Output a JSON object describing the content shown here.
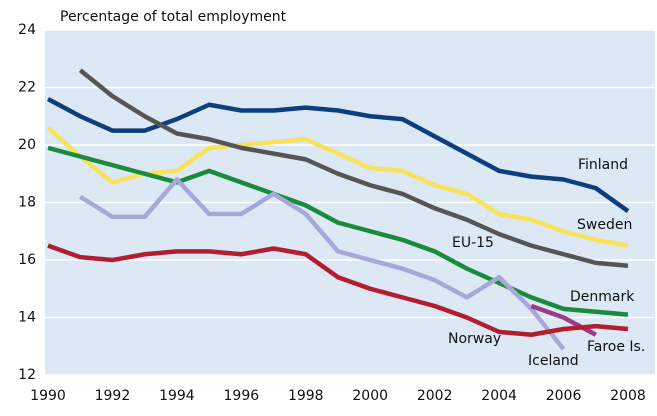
{
  "chart_data": {
    "type": "line",
    "title": "Percentage of total employment",
    "x": [
      1990,
      1991,
      1992,
      1993,
      1994,
      1995,
      1996,
      1997,
      1998,
      1999,
      2000,
      2001,
      2002,
      2003,
      2004,
      2005,
      2006,
      2007,
      2008
    ],
    "xlim": [
      1990,
      2008
    ],
    "xticks": [
      1990,
      1992,
      1994,
      1996,
      1998,
      2000,
      2002,
      2004,
      2006,
      2008
    ],
    "ylim": [
      12,
      24
    ],
    "yticks": [
      12,
      14,
      16,
      18,
      20,
      22,
      24
    ],
    "grid": true,
    "series": [
      {
        "name": "Finland",
        "color": "#0d3f7f",
        "values": [
          21.6,
          21.0,
          20.5,
          20.5,
          20.9,
          21.4,
          21.2,
          21.2,
          21.3,
          21.2,
          21.0,
          20.9,
          20.3,
          19.7,
          19.1,
          18.9,
          18.8,
          18.5,
          17.7
        ]
      },
      {
        "name": "Sweden",
        "color": "#f7e35a",
        "values": [
          20.6,
          19.6,
          18.7,
          19.0,
          19.1,
          19.9,
          20.0,
          20.1,
          20.2,
          19.7,
          19.2,
          19.1,
          18.6,
          18.3,
          17.6,
          17.4,
          17.0,
          16.7,
          16.5
        ]
      },
      {
        "name": "Denmark",
        "color": "#555555",
        "values": [
          null,
          22.6,
          21.7,
          21.0,
          20.4,
          20.2,
          19.9,
          19.7,
          19.5,
          19.0,
          18.6,
          18.3,
          17.8,
          17.4,
          16.9,
          16.5,
          16.2,
          15.9,
          15.8
        ]
      },
      {
        "name": "EU-15",
        "color": "#1a8a3c",
        "values": [
          19.9,
          19.6,
          19.3,
          19.0,
          18.7,
          19.1,
          18.7,
          18.3,
          17.9,
          17.3,
          17.0,
          16.7,
          16.3,
          15.7,
          15.2,
          14.7,
          14.3,
          14.2,
          14.1
        ]
      },
      {
        "name": "Iceland",
        "color": "#a7a7d8",
        "values": [
          null,
          18.2,
          17.5,
          17.5,
          18.8,
          17.6,
          17.6,
          18.3,
          17.6,
          16.3,
          16.0,
          15.7,
          15.3,
          14.7,
          15.4,
          14.3,
          12.9,
          null,
          null
        ]
      },
      {
        "name": "Faroe Is.",
        "color": "#9c3a8c",
        "values": [
          null,
          null,
          null,
          null,
          null,
          null,
          null,
          null,
          null,
          null,
          null,
          null,
          null,
          null,
          null,
          14.4,
          14.0,
          13.4,
          null
        ]
      },
      {
        "name": "Norway",
        "color": "#b21d2f",
        "values": [
          16.5,
          16.1,
          16.0,
          16.2,
          16.3,
          16.3,
          16.2,
          16.4,
          16.2,
          15.4,
          15.0,
          14.7,
          14.4,
          14.0,
          13.5,
          13.4,
          13.6,
          13.7,
          13.6
        ]
      }
    ]
  }
}
